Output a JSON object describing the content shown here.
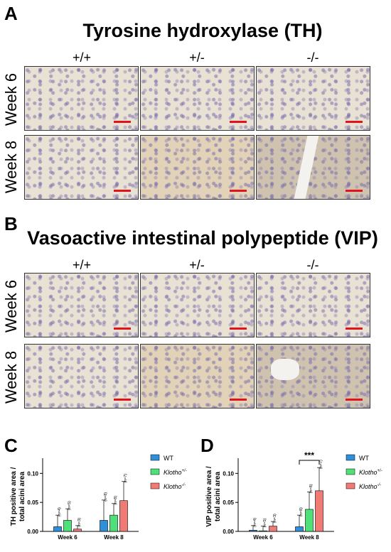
{
  "panels": {
    "A": {
      "letter": "A",
      "title": "Tyrosine hydroxylase (TH)"
    },
    "B": {
      "letter": "B",
      "title": "Vasoactive intestinal polypeptide (VIP)"
    },
    "C": {
      "letter": "C"
    },
    "D": {
      "letter": "D"
    }
  },
  "columns": [
    "+/+",
    "+/-",
    "-/-"
  ],
  "rows": [
    "Week 6",
    "Week 8"
  ],
  "colors": {
    "wt": "#2f8fd8",
    "het": "#4fe07a",
    "ko": "#f07a74",
    "scalebar": "#e0141a"
  },
  "legend": {
    "wt": "WT",
    "klotho_het_base": "Klotho",
    "klotho_het_sup": "+/-",
    "klotho_ko_base": "Klotho",
    "klotho_ko_sup": "-/-"
  },
  "chart_data": [
    {
      "type": "bar",
      "panel": "C",
      "ylabel_line1": "TH positive area /",
      "ylabel_line2": "total acini area",
      "ylim": [
        0,
        0.12
      ],
      "yticks": [
        "0.00",
        "0.05",
        "0.10"
      ],
      "categories": [
        "Week 6",
        "Week 8"
      ],
      "series": [
        {
          "name": "WT",
          "values": [
            0.008,
            0.019
          ],
          "errors": [
            0.02,
            0.035
          ],
          "n": [
            "n=4",
            "n=8"
          ]
        },
        {
          "name": "Klotho+/-",
          "values": [
            0.019,
            0.028
          ],
          "errors": [
            0.02,
            0.02
          ],
          "n": [
            "n=5",
            "n=8"
          ]
        },
        {
          "name": "Klotho-/-",
          "values": [
            0.004,
            0.053
          ],
          "errors": [
            0.006,
            0.033
          ],
          "n": [
            "n=3",
            "n=7"
          ]
        }
      ]
    },
    {
      "type": "bar",
      "panel": "D",
      "ylabel_line1": "VIP positive area /",
      "ylabel_line2": "total acini area",
      "ylim": [
        0,
        0.12
      ],
      "yticks": [
        "0.00",
        "0.05",
        "0.10"
      ],
      "categories": [
        "Week 6",
        "Week 8"
      ],
      "significance": "***",
      "series": [
        {
          "name": "WT",
          "values": [
            0.002,
            0.008
          ],
          "errors": [
            0.008,
            0.02
          ],
          "n": [
            "n=4",
            "n=8"
          ]
        },
        {
          "name": "Klotho+/-",
          "values": [
            0.001,
            0.038
          ],
          "errors": [
            0.008,
            0.03
          ],
          "n": [
            "n=5",
            "n=8"
          ]
        },
        {
          "name": "Klotho-/-",
          "values": [
            0.009,
            0.07
          ],
          "errors": [
            0.008,
            0.04
          ],
          "n": [
            "n=3",
            "n=7"
          ]
        }
      ]
    }
  ]
}
